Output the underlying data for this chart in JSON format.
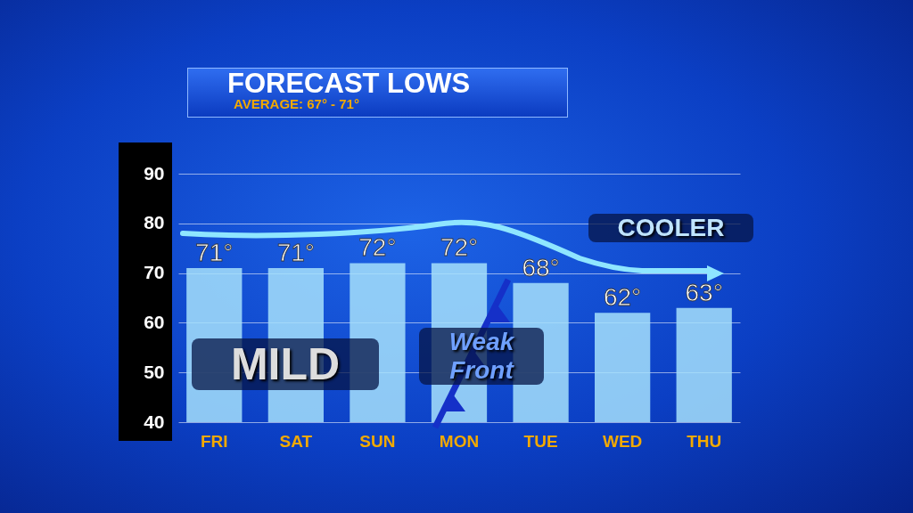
{
  "chart_data": {
    "type": "bar",
    "title": "FORECAST LOWS",
    "subtitle": "AVERAGE: 67° - 71°",
    "categories": [
      "FRI",
      "SAT",
      "SUN",
      "MON",
      "TUE",
      "WED",
      "THU"
    ],
    "values": [
      71,
      71,
      72,
      72,
      68,
      62,
      63
    ],
    "value_labels": [
      "71°",
      "71°",
      "72°",
      "72°",
      "68°",
      "62°",
      "63°"
    ],
    "color": "#a6e0fb",
    "ylim": [
      40,
      90
    ],
    "yticks": [
      40,
      50,
      60,
      70,
      80,
      90
    ],
    "grid": "y",
    "annotations": [
      "MILD",
      "Weak Front",
      "COOLER"
    ]
  }
}
